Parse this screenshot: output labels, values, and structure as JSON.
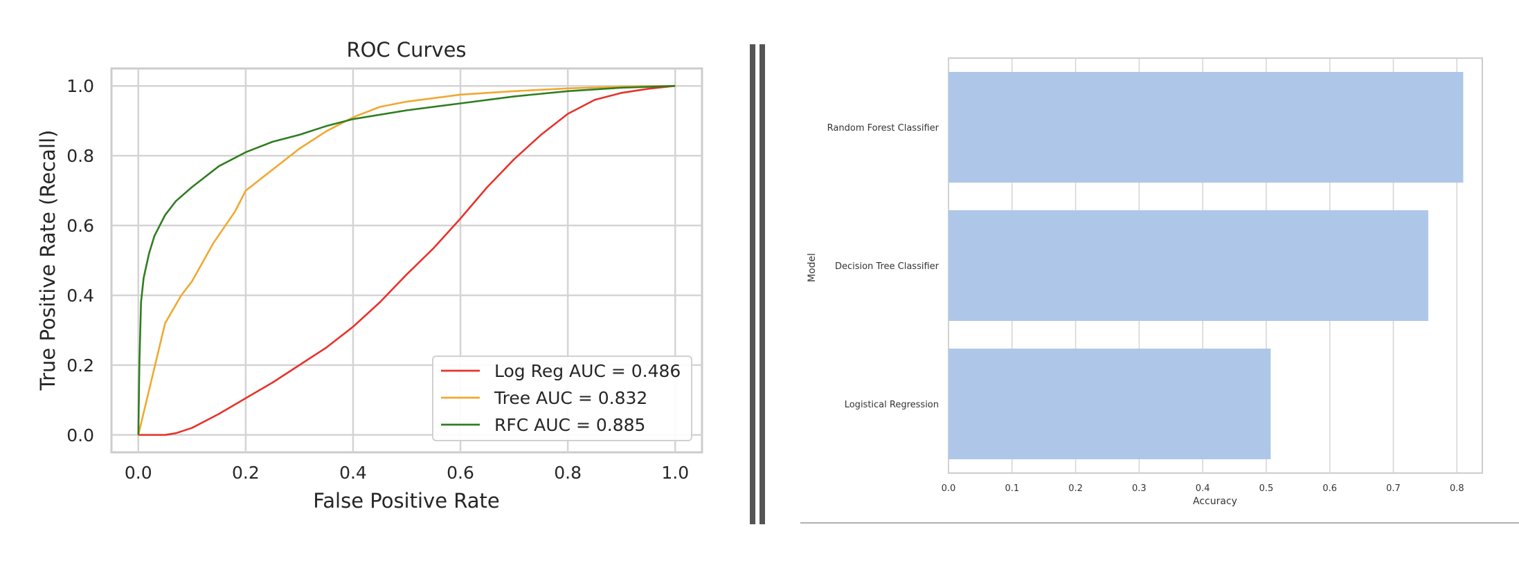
{
  "chart_data": [
    {
      "type": "line",
      "title": "ROC Curves",
      "xlabel": "False Positive Rate",
      "ylabel": "True Positive Rate (Recall)",
      "xlim": [
        -0.05,
        1.05
      ],
      "ylim": [
        -0.05,
        1.05
      ],
      "xticks": [
        "0.0",
        "0.2",
        "0.4",
        "0.6",
        "0.8",
        "1.0"
      ],
      "yticks": [
        "0.0",
        "0.2",
        "0.4",
        "0.6",
        "0.8",
        "1.0"
      ],
      "grid": true,
      "legend_position": "lower-right",
      "series": [
        {
          "name": "Log Reg AUC = 0.486",
          "color": "#e8312a",
          "x": [
            0.0,
            0.05,
            0.07,
            0.1,
            0.15,
            0.2,
            0.25,
            0.3,
            0.35,
            0.4,
            0.45,
            0.5,
            0.55,
            0.6,
            0.65,
            0.7,
            0.75,
            0.8,
            0.85,
            0.9,
            0.95,
            1.0
          ],
          "y": [
            0.0,
            0.0,
            0.005,
            0.02,
            0.06,
            0.105,
            0.15,
            0.2,
            0.25,
            0.31,
            0.38,
            0.46,
            0.535,
            0.62,
            0.71,
            0.79,
            0.86,
            0.92,
            0.96,
            0.98,
            0.992,
            1.0
          ]
        },
        {
          "name": "Tree AUC = 0.832",
          "color": "#f0a830",
          "x": [
            0.0,
            0.05,
            0.08,
            0.1,
            0.14,
            0.18,
            0.2,
            0.25,
            0.3,
            0.35,
            0.4,
            0.45,
            0.5,
            0.55,
            0.6,
            0.7,
            0.8,
            0.9,
            1.0
          ],
          "y": [
            0.0,
            0.32,
            0.4,
            0.44,
            0.55,
            0.64,
            0.7,
            0.76,
            0.82,
            0.87,
            0.91,
            0.94,
            0.955,
            0.965,
            0.975,
            0.985,
            0.993,
            0.998,
            1.0
          ]
        },
        {
          "name": "RFC AUC = 0.885",
          "color": "#2e7d1f",
          "x": [
            0.0,
            0.002,
            0.005,
            0.01,
            0.02,
            0.03,
            0.05,
            0.07,
            0.1,
            0.15,
            0.2,
            0.25,
            0.3,
            0.35,
            0.4,
            0.5,
            0.6,
            0.7,
            0.8,
            0.9,
            1.0
          ],
          "y": [
            0.0,
            0.2,
            0.38,
            0.45,
            0.52,
            0.57,
            0.63,
            0.67,
            0.71,
            0.77,
            0.81,
            0.84,
            0.86,
            0.885,
            0.905,
            0.93,
            0.95,
            0.97,
            0.985,
            0.995,
            1.0
          ]
        }
      ]
    },
    {
      "type": "bar",
      "orientation": "horizontal",
      "title": "",
      "xlabel": "Accuracy",
      "ylabel": "Model",
      "xlim": [
        0,
        0.84
      ],
      "xticks": [
        "0.0",
        "0.1",
        "0.2",
        "0.3",
        "0.4",
        "0.5",
        "0.6",
        "0.7",
        "0.8"
      ],
      "grid": true,
      "bar_color": "#aec7e8",
      "categories": [
        "Random Forest Classifier",
        "Decision Tree Classifier",
        "Logistical Regression"
      ],
      "values": [
        0.81,
        0.755,
        0.507
      ]
    }
  ]
}
